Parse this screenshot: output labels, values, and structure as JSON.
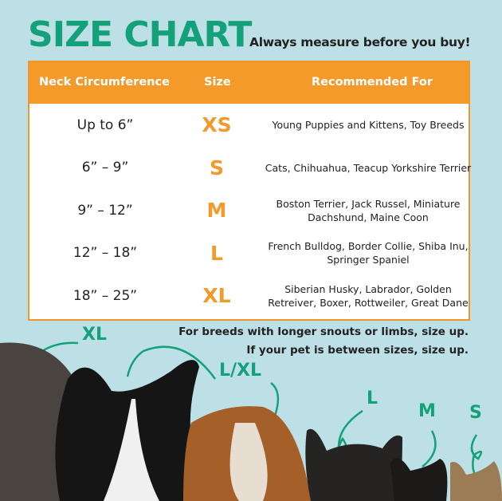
{
  "header": {
    "title": "SIZE CHART",
    "subtitle": "Always measure before you buy!"
  },
  "table": {
    "columns": [
      "Neck Circumference",
      "Size",
      "Recommended For"
    ],
    "rows": [
      {
        "neck": "Up to 6”",
        "size": "XS",
        "recommended": "Young Puppies and Kittens, Toy Breeds"
      },
      {
        "neck": "6” – 9”",
        "size": "S",
        "recommended": "Cats, Chihuahua, Teacup Yorkshire Terrier"
      },
      {
        "neck": "9” – 12”",
        "size": "M",
        "recommended": "Boston Terrier, Jack Russel, Miniature Dachshund, Maine Coon"
      },
      {
        "neck": "12” – 18”",
        "size": "L",
        "recommended": "French Bulldog, Border Collie, Shiba Inu, Springer Spaniel"
      },
      {
        "neck": "18” – 25”",
        "size": "XL",
        "recommended": "Siberian Husky, Labrador, Golden Retreiver, Boxer, Rottweiler, Great Dane"
      }
    ]
  },
  "notes": [
    "For breeds with longer snouts or limbs, size up.",
    "If your pet is between sizes, size up."
  ],
  "pet_labels": [
    "XL",
    "L/XL",
    "L",
    "M",
    "S"
  ],
  "colors": {
    "background": "#bde0e7",
    "green": "#14a079",
    "orange": "#f39a2b"
  }
}
